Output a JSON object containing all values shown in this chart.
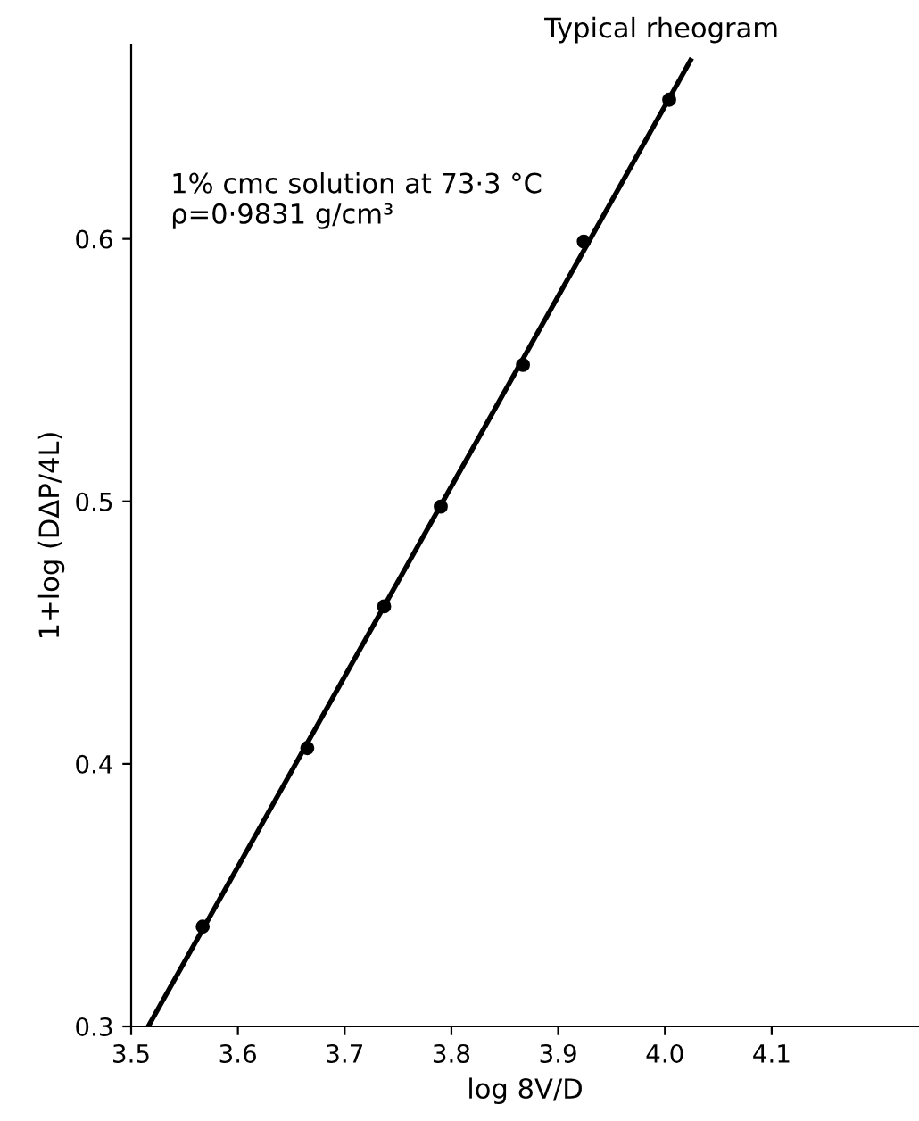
{
  "chart_data": {
    "type": "scatter",
    "title": "Typical rheogram",
    "xlabel": "log 8V/D",
    "ylabel": "1+log (DΔP/4L)",
    "annotations": [
      "1% cmc solution at 73·3 °C\nρ=0·9831 g/cm³"
    ],
    "series": [
      {
        "color": "#000000",
        "marker": "circle",
        "x": [
          3.567,
          3.665,
          3.737,
          3.79,
          3.867,
          3.924,
          4.004
        ],
        "values": [
          0.338,
          0.406,
          0.46,
          0.498,
          0.552,
          0.599,
          0.653
        ]
      },
      {
        "type": "line",
        "color": "#000000",
        "marker": "none",
        "line_style": "solid",
        "x": [
          3.516,
          4.024
        ],
        "values": [
          0.3,
          0.668
        ]
      }
    ],
    "xlim": [
      3.5,
      4.238
    ],
    "ylim": [
      0.3,
      0.674
    ],
    "xticks": [
      3.5,
      3.6,
      3.7,
      3.8,
      3.9,
      {
        "value": 4.0,
        "label": "4.0"
      },
      4.1
    ],
    "yticks": [
      0.3,
      0.4,
      0.5,
      0.6
    ],
    "grid": false,
    "legend": false
  }
}
